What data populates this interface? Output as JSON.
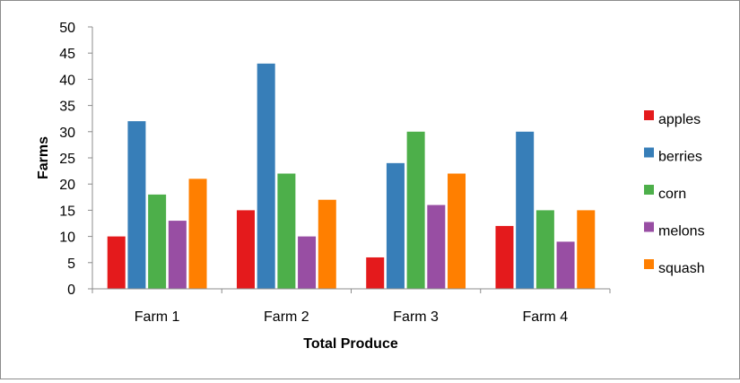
{
  "chart_data": {
    "type": "bar",
    "title": "",
    "xlabel": "Total Produce",
    "ylabel": "Farms",
    "ylim": [
      0,
      50
    ],
    "ytick_step": 5,
    "grid": false,
    "legend_position": "right",
    "categories": [
      "Farm 1",
      "Farm 2",
      "Farm 3",
      "Farm 4"
    ],
    "series": [
      {
        "name": "apples",
        "color": "#e41a1c",
        "values": [
          10,
          15,
          6,
          12
        ]
      },
      {
        "name": "berries",
        "color": "#377eb8",
        "values": [
          32,
          43,
          24,
          30
        ]
      },
      {
        "name": "corn",
        "color": "#4daf4a",
        "values": [
          18,
          22,
          30,
          15
        ]
      },
      {
        "name": "melons",
        "color": "#984ea3",
        "values": [
          13,
          10,
          16,
          9
        ]
      },
      {
        "name": "squash",
        "color": "#ff7f00",
        "values": [
          21,
          17,
          22,
          15
        ]
      }
    ]
  }
}
